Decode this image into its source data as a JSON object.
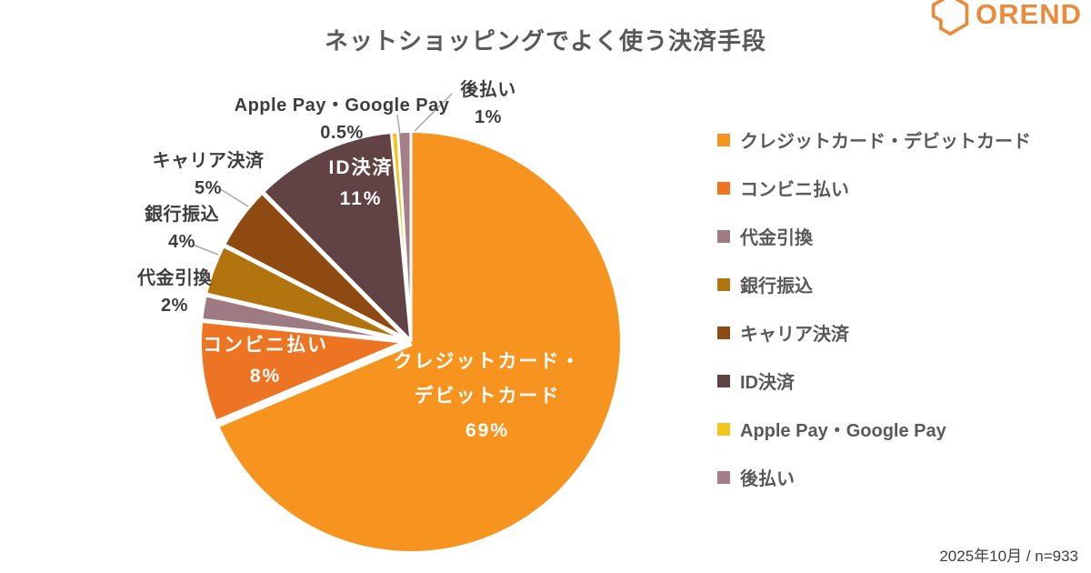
{
  "header": {
    "logo_text": "OREND",
    "logo_color": "#E98B3D"
  },
  "footer": {
    "note": "2025年10月 / n=933"
  },
  "chart_data": {
    "type": "pie",
    "title": "ネットショッピングでよく使う決済手段",
    "unit": "%",
    "sample_note": "2025年10月 / n=933",
    "start_angle_deg": 0,
    "direction": "clockwise",
    "legend_position": "right",
    "series": [
      {
        "label": "クレジットカード・デビットカード",
        "label_lines": [
          "クレジットカード・",
          "デビットカード"
        ],
        "value": 69,
        "display": "69%",
        "color": "#F7941F",
        "label_placement": "inside"
      },
      {
        "label": "コンビニ払い",
        "value": 8,
        "display": "8%",
        "color": "#ED7423",
        "label_placement": "inside"
      },
      {
        "label": "代金引換",
        "value": 2,
        "display": "2%",
        "color": "#9E7B83",
        "label_placement": "outside"
      },
      {
        "label": "銀行振込",
        "value": 4,
        "display": "4%",
        "color": "#B1740F",
        "label_placement": "outside"
      },
      {
        "label": "キャリア決済",
        "value": 5,
        "display": "5%",
        "color": "#8F4A11",
        "label_placement": "outside"
      },
      {
        "label": "ID決済",
        "value": 11,
        "display": "11%",
        "color": "#624345",
        "label_placement": "inside"
      },
      {
        "label": "Apple Pay・Google Pay",
        "value": 0.5,
        "display": "0.5%",
        "color": "#F6C51B",
        "label_placement": "outside"
      },
      {
        "label": "後払い",
        "value": 1,
        "display": "1%",
        "color": "#A67E88",
        "label_placement": "outside"
      }
    ]
  }
}
